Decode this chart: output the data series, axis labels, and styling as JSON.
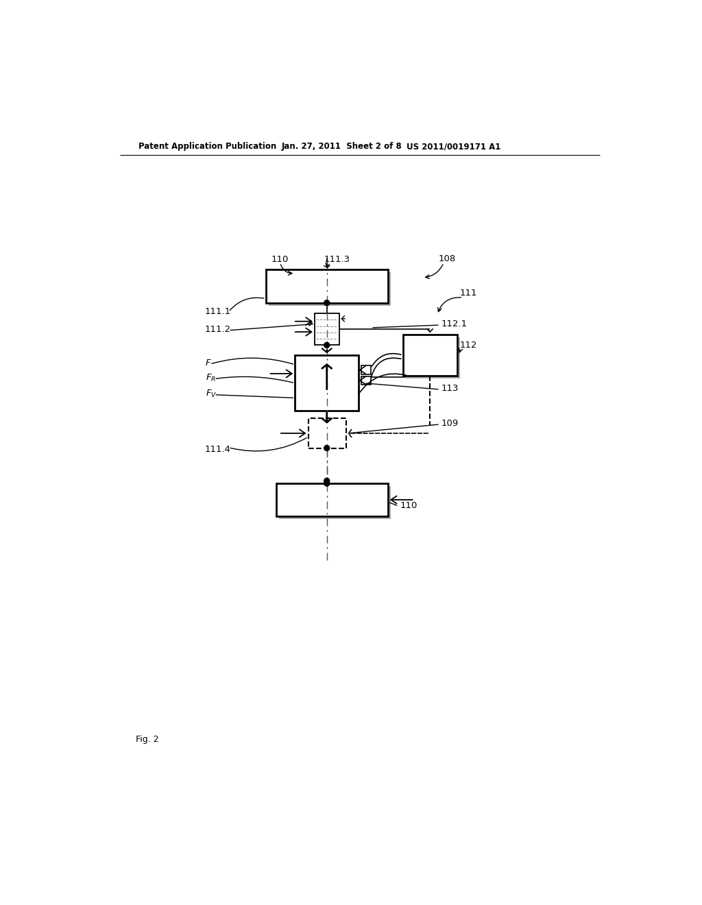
{
  "bg_color": "#ffffff",
  "header_left": "Patent Application Publication",
  "header_mid": "Jan. 27, 2011  Sheet 2 of 8",
  "header_right": "US 2011/0019171 A1",
  "footer_label": "Fig. 2",
  "fig_width": 10.24,
  "fig_height": 13.2,
  "dpi": 100
}
